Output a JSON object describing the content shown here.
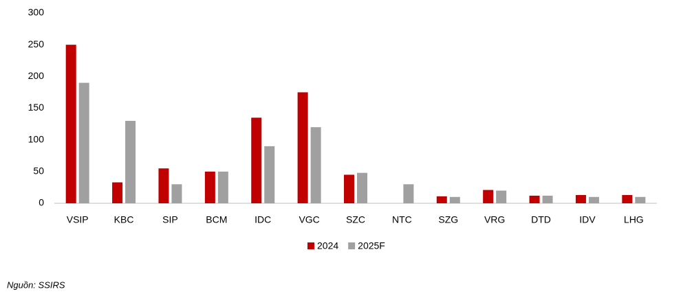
{
  "chart_data": {
    "type": "bar",
    "categories": [
      "VSIP",
      "KBC",
      "SIP",
      "BCM",
      "IDC",
      "VGC",
      "SZC",
      "NTC",
      "SZG",
      "VRG",
      "DTD",
      "IDV",
      "LHG"
    ],
    "series": [
      {
        "name": "2024",
        "color": "#c00000",
        "values": [
          250,
          33,
          55,
          50,
          135,
          175,
          45,
          null,
          11,
          21,
          12,
          13,
          13
        ]
      },
      {
        "name": "2025F",
        "color": "#a0a0a0",
        "values": [
          190,
          130,
          30,
          50,
          90,
          120,
          48,
          30,
          10,
          20,
          12,
          10,
          10
        ]
      }
    ],
    "ylim": [
      0,
      300
    ],
    "yticks": [
      0,
      50,
      100,
      150,
      200,
      250,
      300
    ],
    "grid": false,
    "legend": "bottom"
  },
  "source": "Nguồn: SSIRS"
}
